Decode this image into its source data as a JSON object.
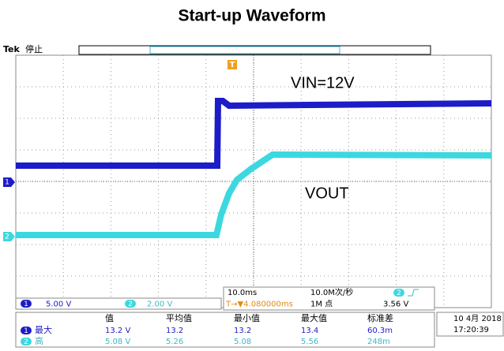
{
  "title": "Start-up Waveform",
  "header": {
    "brand": "Tek",
    "status": "停止",
    "trigger_marker": "T"
  },
  "channel_markers": [
    "1",
    "2"
  ],
  "annotations": {
    "vin": "VIN=12V",
    "vout": "VOUT"
  },
  "channels": [
    {
      "id": "1",
      "scale": "5.00 V"
    },
    {
      "id": "2",
      "scale": "2.00 V"
    }
  ],
  "timebase": {
    "scale": "10.0ms",
    "rate": "10.0M次/秒",
    "trigger_channel": "2",
    "trigger_position": "T→▼4.080000ms",
    "record_length": "1M 点",
    "trigger_level": "3.56 V"
  },
  "measurements": {
    "headers": [
      "值",
      "平均值",
      "最小值",
      "最大值",
      "标准差"
    ],
    "rows": [
      {
        "channel": "1",
        "name": "最大",
        "cells": [
          "13.2 V",
          "13.2",
          "13.2",
          "13.4",
          "60.3m"
        ]
      },
      {
        "channel": "2",
        "name": "高",
        "cells": [
          "5.08 V",
          "5.26",
          "5.08",
          "5.56",
          "248m"
        ]
      }
    ]
  },
  "timestamp": {
    "date": "10 4月 2018",
    "time": "17:20:39"
  }
}
